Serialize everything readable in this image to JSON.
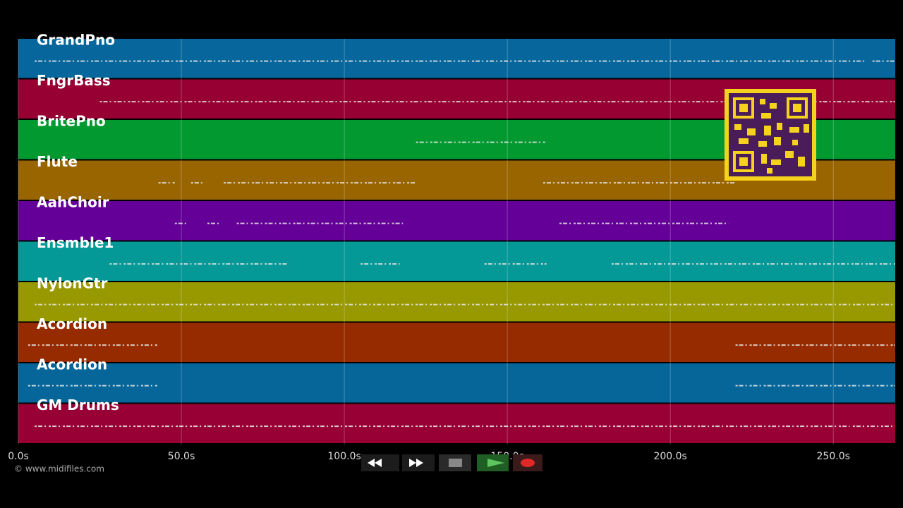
{
  "tracks": [
    {
      "name": "GrandPno",
      "color": "#07679c",
      "notes": [
        [
          5,
          260
        ],
        [
          262,
          269
        ]
      ]
    },
    {
      "name": "FngrBass",
      "color": "#970033",
      "notes": [
        [
          25,
          269
        ]
      ]
    },
    {
      "name": "BritePno",
      "color": "#029a30",
      "notes": [
        [
          122,
          162
        ]
      ]
    },
    {
      "name": "Flute",
      "color": "#986500",
      "notes": [
        [
          43,
          48
        ],
        [
          53,
          57
        ],
        [
          63,
          122
        ],
        [
          161,
          220
        ]
      ]
    },
    {
      "name": "AahChoir",
      "color": "#640098",
      "notes": [
        [
          48,
          52
        ],
        [
          58,
          62
        ],
        [
          67,
          118
        ],
        [
          166,
          218
        ]
      ]
    },
    {
      "name": "Ensmble1",
      "color": "#049897",
      "notes": [
        [
          28,
          83
        ],
        [
          105,
          117
        ],
        [
          143,
          162
        ],
        [
          182,
          269
        ]
      ]
    },
    {
      "name": "NylonGtr",
      "color": "#989800",
      "notes": [
        [
          5,
          269
        ]
      ]
    },
    {
      "name": "Acordion",
      "color": "#962b00",
      "notes": [
        [
          3,
          43
        ],
        [
          220,
          269
        ]
      ]
    },
    {
      "name": "Acordion",
      "color": "#06669a",
      "notes": [
        [
          3,
          43
        ],
        [
          220,
          269
        ]
      ]
    },
    {
      "name": "GM Drums",
      "color": "#980035",
      "notes": [
        [
          5,
          255
        ],
        [
          256,
          269
        ]
      ]
    }
  ],
  "timeline": {
    "xlim": [
      0,
      269
    ],
    "xticks": [
      {
        "value": 0,
        "label": "0.0s"
      },
      {
        "value": 50,
        "label": "50.0s"
      },
      {
        "value": 100,
        "label": "100.0s"
      },
      {
        "value": 150,
        "label": "150.0s"
      },
      {
        "value": 200,
        "label": "200.0s"
      },
      {
        "value": 250,
        "label": "250.0s"
      }
    ]
  },
  "footer": {
    "copyright": "© www.midifiles.com"
  }
}
